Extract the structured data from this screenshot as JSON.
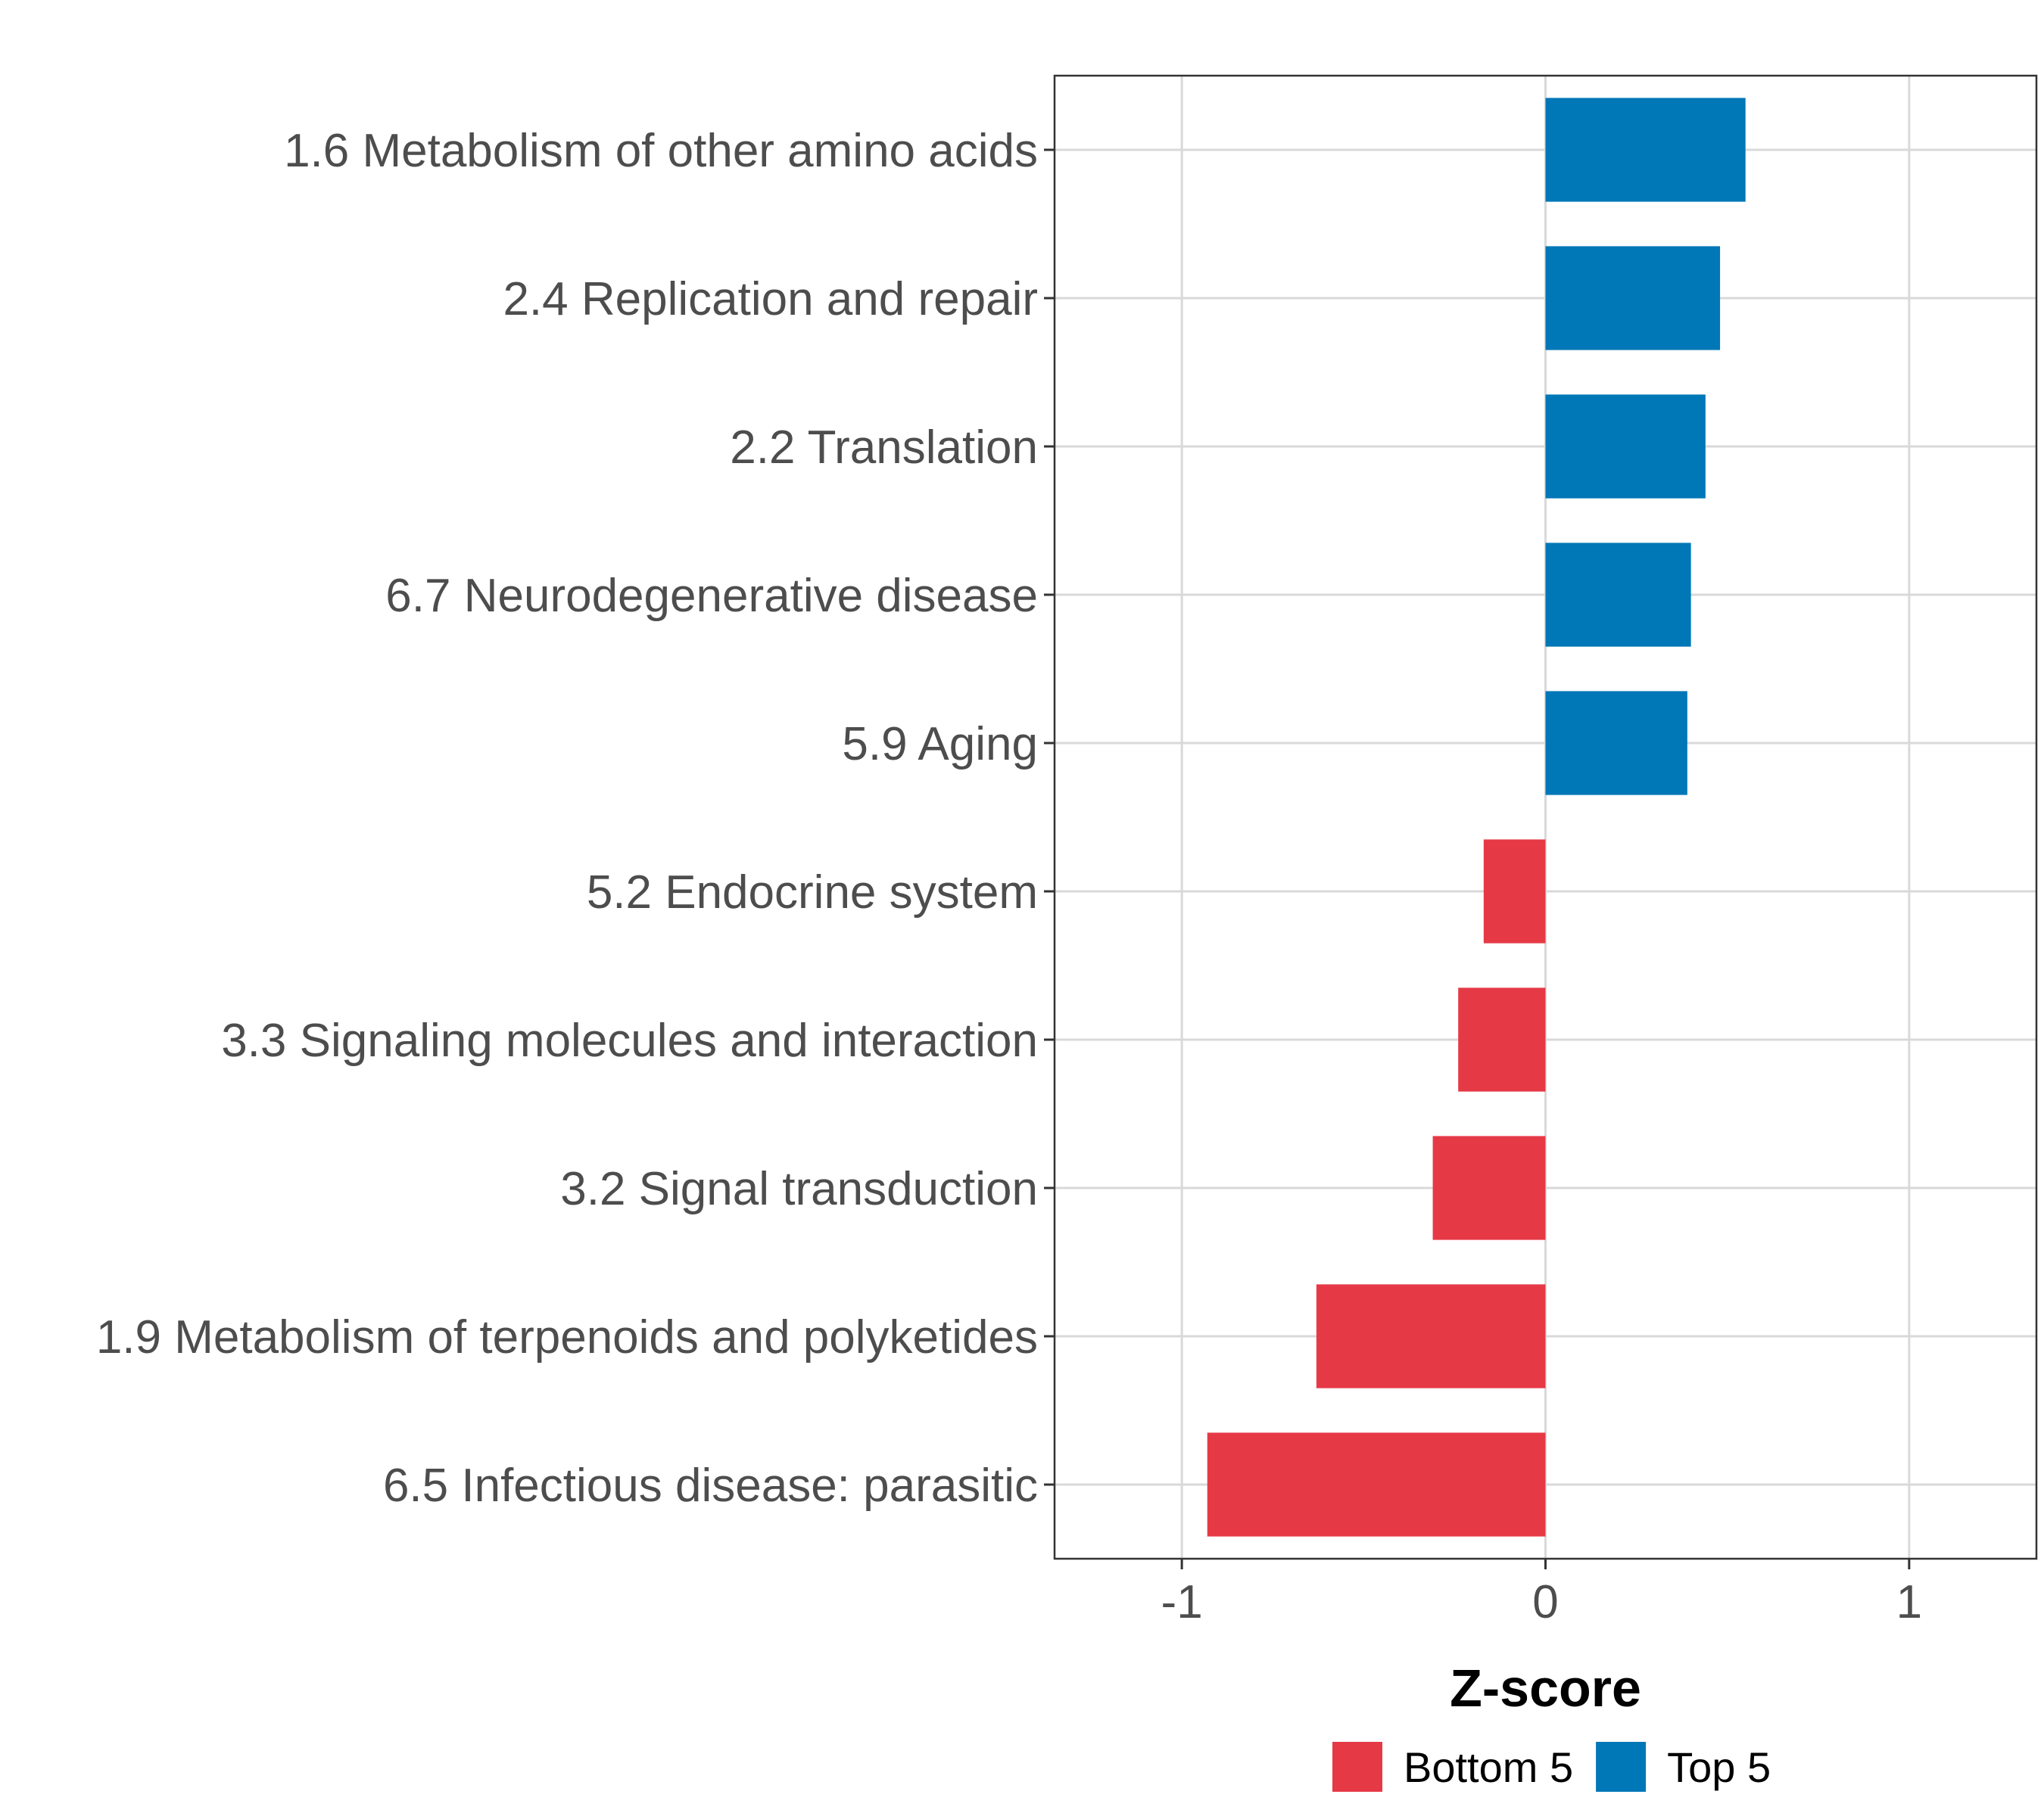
{
  "chart_data": {
    "type": "bar",
    "orientation": "horizontal",
    "title": "",
    "xlabel": "Z-score",
    "ylabel": "",
    "xlim": [
      -1.35,
      1.35
    ],
    "xticks": [
      -1,
      0,
      1
    ],
    "xtick_labels": [
      "-1",
      "0",
      "1"
    ],
    "grid": true,
    "categories": [
      "1.6 Metabolism of other amino acids",
      "2.4 Replication and repair",
      "2.2 Translation",
      "6.7 Neurodegenerative disease",
      "5.9 Aging",
      "5.2 Endocrine system",
      "3.3 Signaling molecules and interaction",
      "3.2 Signal transduction",
      "1.9 Metabolism of terpenoids and polyketides",
      "6.5 Infectious disease: parasitic"
    ],
    "values": [
      0.55,
      0.48,
      0.44,
      0.4,
      0.39,
      -0.17,
      -0.24,
      -0.31,
      -0.63,
      -0.93
    ],
    "groups": [
      "Top 5",
      "Top 5",
      "Top 5",
      "Top 5",
      "Top 5",
      "Bottom 5",
      "Bottom 5",
      "Bottom 5",
      "Bottom 5",
      "Bottom 5"
    ],
    "legend": {
      "position": "bottom",
      "entries": [
        {
          "label": "Bottom 5",
          "color": "#e63946"
        },
        {
          "label": "Top 5",
          "color": "#0077b6"
        }
      ]
    }
  }
}
